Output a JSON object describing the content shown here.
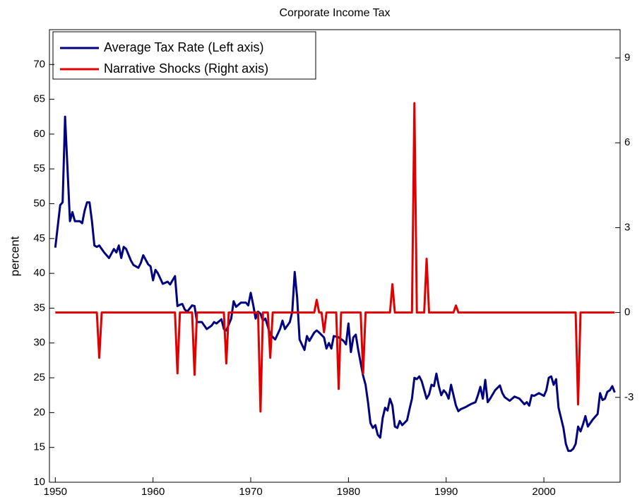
{
  "chart_data": {
    "type": "line",
    "title": "Corporate Income Tax",
    "y_label": "percent",
    "xlim": [
      1949.4,
      2007.8
    ],
    "xticks": [
      1950,
      1960,
      1970,
      1980,
      1990,
      2000
    ],
    "ylim": [
      10,
      75
    ],
    "yticks": [
      10,
      15,
      20,
      25,
      30,
      35,
      40,
      45,
      50,
      55,
      60,
      65,
      70
    ],
    "y2lim": [
      -6,
      10
    ],
    "y2ticks": [
      -3,
      0,
      3,
      6,
      9
    ],
    "legend": "upper left",
    "series": [
      {
        "name": "Average Tax Rate (Left axis)",
        "color": "#000080",
        "axis": "y",
        "x": [
          1950,
          1950.5,
          1950.75,
          1951,
          1951.25,
          1951.5,
          1951.75,
          1952,
          1952.5,
          1952.75,
          1953,
          1953.25,
          1953.5,
          1953.75,
          1954,
          1954.25,
          1954.5,
          1955,
          1955.5,
          1956,
          1956.25,
          1956.5,
          1956.75,
          1957,
          1957.25,
          1957.75,
          1958,
          1958.5,
          1958.75,
          1959,
          1959.5,
          1959.75,
          1960,
          1960.25,
          1960.5,
          1961,
          1961.5,
          1961.75,
          1962,
          1962.25,
          1962.5,
          1962.75,
          1963,
          1963.25,
          1963.5,
          1964,
          1964.25,
          1964.5,
          1965,
          1965.5,
          1966,
          1966.25,
          1966.5,
          1967,
          1967.25,
          1967.5,
          1968,
          1968.25,
          1968.5,
          1969,
          1969.5,
          1969.75,
          1970,
          1970.25,
          1970.5,
          1970.75,
          1971,
          1971.25,
          1971.5,
          1972,
          1972.5,
          1973,
          1973.25,
          1973.5,
          1974,
          1974.25,
          1974.5,
          1974.75,
          1975,
          1975.5,
          1975.75,
          1976,
          1976.5,
          1976.75,
          1977,
          1977.5,
          1977.75,
          1978,
          1978.25,
          1978.5,
          1979,
          1979.5,
          1979.75,
          1980,
          1980.25,
          1980.5,
          1980.75,
          1981,
          1981.5,
          1981.75,
          1982,
          1982.25,
          1982.5,
          1982.75,
          1983,
          1983.25,
          1983.5,
          1983.75,
          1984,
          1984.25,
          1984.5,
          1984.75,
          1985,
          1985.25,
          1985.5,
          1986,
          1986.25,
          1986.5,
          1986.75,
          1987,
          1987.25,
          1987.5,
          1988,
          1988.25,
          1988.5,
          1988.75,
          1989,
          1989.25,
          1989.5,
          1989.75,
          1990,
          1990.25,
          1990.5,
          1991,
          1991.25,
          1991.5,
          1992,
          1992.5,
          1993,
          1993.25,
          1993.5,
          1993.75,
          1994,
          1994.25,
          1994.5,
          1995,
          1995.5,
          1995.75,
          1996,
          1996.5,
          1997,
          1997.5,
          1998,
          1998.25,
          1998.5,
          1998.75,
          1999,
          1999.5,
          2000,
          2000.25,
          2000.5,
          2000.75,
          2001,
          2001.25,
          2001.5,
          2002,
          2002.25,
          2002.5,
          2002.75,
          2003,
          2003.25,
          2003.5,
          2003.75,
          2004,
          2004.25,
          2004.5,
          2005,
          2005.5,
          2005.75,
          2006,
          2006.25,
          2006.5,
          2006.75,
          2007,
          2007.25
        ],
        "values": [
          43.7,
          49.8,
          50.2,
          62.5,
          55,
          47.5,
          48.8,
          47.5,
          47.5,
          47.2,
          49,
          50.2,
          50.2,
          47.5,
          44,
          43.8,
          44,
          43,
          42.2,
          43.5,
          43,
          44,
          42.2,
          43.8,
          43.5,
          41.8,
          41.2,
          40.8,
          41.5,
          42.6,
          41.3,
          41,
          39,
          40.5,
          40,
          38.5,
          38.8,
          38.4,
          39,
          39.6,
          35.3,
          35.5,
          35.6,
          34.8,
          34.5,
          35.4,
          35.3,
          33,
          33,
          32,
          32.5,
          33,
          32.8,
          33.4,
          32,
          31.8,
          33.5,
          36,
          35.2,
          35.8,
          35.8,
          35.4,
          37.2,
          35.5,
          33.5,
          34.5,
          34.2,
          33.2,
          33.5,
          31.2,
          30.5,
          32,
          33.2,
          32,
          33,
          34.5,
          40.2,
          36.5,
          30.5,
          29,
          31,
          30.3,
          31.5,
          31.8,
          31.5,
          30.8,
          29.2,
          30,
          29.2,
          31,
          30.8,
          30.3,
          29.8,
          32.8,
          28.7,
          30.8,
          31.2,
          29,
          25.3,
          24,
          21.5,
          18.5,
          17.8,
          18.2,
          16.8,
          16.4,
          19.2,
          20.7,
          20.3,
          22,
          21,
          18,
          17.8,
          18.8,
          18.2,
          18.9,
          20.5,
          22,
          25,
          24.8,
          25.2,
          24.5,
          22,
          22.6,
          24,
          23.8,
          25.6,
          23.8,
          22.5,
          23.2,
          22.8,
          22,
          24,
          21,
          20.2,
          20.5,
          20.8,
          21.2,
          21.5,
          22.5,
          23.7,
          22,
          24.7,
          21.5,
          22,
          23.2,
          23.9,
          22.8,
          22.2,
          21.7,
          22.3,
          22,
          21.2,
          21.5,
          21,
          22.5,
          22.4,
          22.8,
          22.4,
          23.2,
          25,
          25.2,
          24,
          24.8,
          20.7,
          17.8,
          15.5,
          14.5,
          14.5,
          14.8,
          15.5,
          18,
          17.3,
          18.3,
          19.5,
          18,
          19,
          19.8,
          22.8,
          21.8,
          22,
          23,
          23.2,
          23.8,
          22.9
        ]
      },
      {
        "name": "Narrative Shocks (Right axis)",
        "color": "#e00000",
        "axis": "y2",
        "x": [
          1950,
          1954.25,
          1954.5,
          1954.75,
          1962.25,
          1962.5,
          1962.75,
          1964,
          1964.25,
          1964.5,
          1967.25,
          1967.5,
          1967.75,
          1970.75,
          1971,
          1971.25,
          1971.75,
          1972,
          1972.25,
          1976.5,
          1976.75,
          1977,
          1977.25,
          1977.5,
          1977.75,
          1978.75,
          1979,
          1979.25,
          1981.25,
          1981.5,
          1981.75,
          1984.25,
          1984.5,
          1984.75,
          1986.5,
          1986.75,
          1987,
          1987.75,
          1988,
          1988.25,
          1990.75,
          1991,
          1991.25,
          2003.25,
          2003.5,
          2003.75,
          2007.25
        ],
        "values": [
          0,
          0,
          -1.6,
          0,
          0,
          -2.15,
          0,
          0,
          -2.2,
          0,
          0,
          -1.8,
          0,
          0,
          -3.5,
          0,
          0,
          -1.6,
          0,
          0,
          0.45,
          0,
          0,
          -0.7,
          0,
          0,
          -2.7,
          0,
          0,
          -2.15,
          0,
          0,
          1.0,
          0,
          0,
          7.4,
          0,
          0,
          1.9,
          0,
          0,
          0.25,
          0,
          0,
          -3.25,
          0,
          0
        ]
      }
    ]
  }
}
